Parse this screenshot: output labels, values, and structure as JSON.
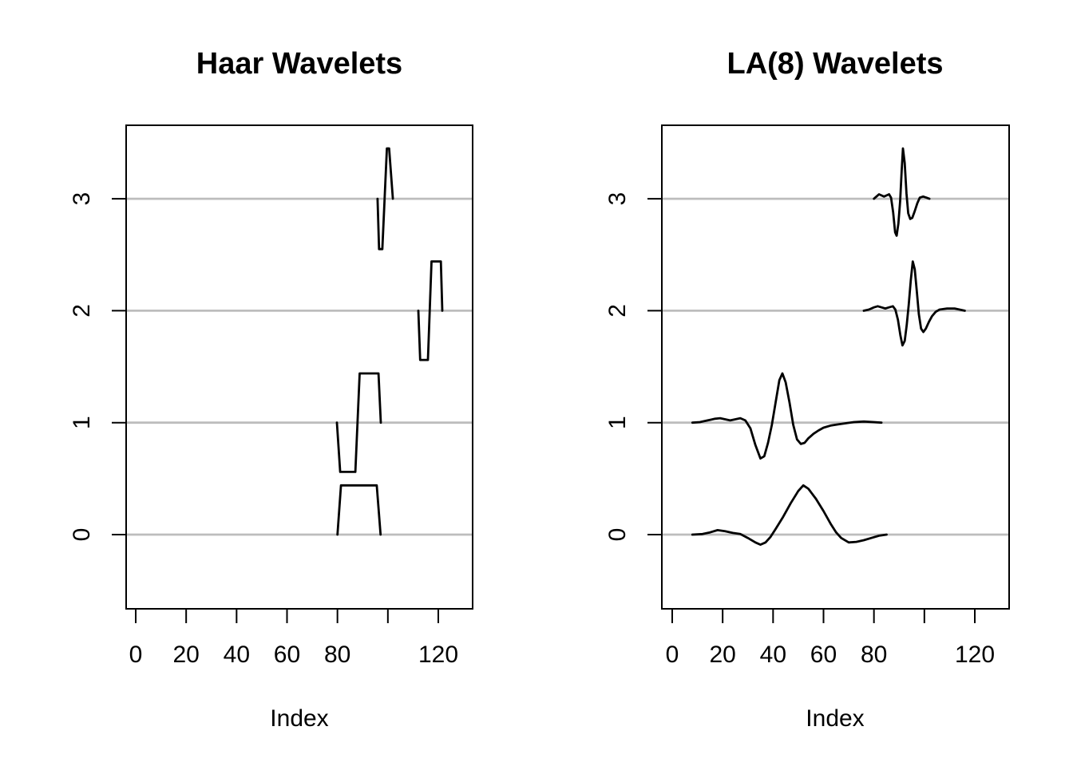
{
  "figure": {
    "background": "#ffffff",
    "text_color": "#000000",
    "baseline_color": "#bdbdbd",
    "curve_color": "#000000"
  },
  "chart_data": [
    {
      "type": "line",
      "name": "haar",
      "title": "Haar Wavelets",
      "xlabel": "Index",
      "xlim": [
        -4,
        133
      ],
      "ylim": [
        -0.66,
        3.66
      ],
      "grid": false,
      "legend": "none",
      "x_ticks": {
        "values": [
          0,
          20,
          40,
          60,
          80,
          100,
          120
        ],
        "labels": [
          "0",
          "20",
          "40",
          "60",
          "80",
          "",
          "120"
        ]
      },
      "y_ticks": {
        "values": [
          0,
          1,
          2,
          3
        ],
        "labels": [
          "0",
          "1",
          "2",
          "3"
        ]
      },
      "baselines": [
        0,
        1,
        2,
        3
      ],
      "series": [
        {
          "name": "haar-level-0-scaling",
          "level": 0,
          "points": [
            [
              80.0,
              0
            ],
            [
              81.4,
              0.44
            ],
            [
              95.6,
              0.44
            ],
            [
              97.1,
              0
            ]
          ]
        },
        {
          "name": "haar-level-1-wavelet",
          "level": 1,
          "points": [
            [
              79.8,
              0
            ],
            [
              81.1,
              -0.44
            ],
            [
              87.1,
              -0.44
            ],
            [
              88.8,
              0.44
            ],
            [
              96.3,
              0.44
            ],
            [
              97.2,
              0
            ]
          ]
        },
        {
          "name": "haar-level-2-wavelet",
          "level": 2,
          "points": [
            [
              112.1,
              0
            ],
            [
              112.8,
              -0.44
            ],
            [
              115.9,
              -0.44
            ],
            [
              117.3,
              0.44
            ],
            [
              121.0,
              0.44
            ],
            [
              121.6,
              0
            ]
          ]
        },
        {
          "name": "haar-level-3-wavelet",
          "level": 3,
          "points": [
            [
              95.9,
              0
            ],
            [
              96.5,
              -0.45
            ],
            [
              97.8,
              -0.45
            ],
            [
              99.6,
              0.45
            ],
            [
              100.5,
              0.45
            ],
            [
              102.0,
              0
            ]
          ]
        }
      ]
    },
    {
      "type": "line",
      "name": "la8",
      "title": "LA(8) Wavelets",
      "xlabel": "Index",
      "xlim": [
        -4,
        133
      ],
      "ylim": [
        -0.66,
        3.66
      ],
      "grid": false,
      "legend": "none",
      "x_ticks": {
        "values": [
          0,
          20,
          40,
          60,
          80,
          100,
          120
        ],
        "labels": [
          "0",
          "20",
          "40",
          "60",
          "80",
          "",
          "120"
        ]
      },
      "y_ticks": {
        "values": [
          0,
          1,
          2,
          3
        ],
        "labels": [
          "0",
          "1",
          "2",
          "3"
        ]
      },
      "baselines": [
        0,
        1,
        2,
        3
      ],
      "series": [
        {
          "name": "la8-level-0-scaling",
          "level": 0,
          "points": [
            [
              8,
              0
            ],
            [
              12,
              0.005
            ],
            [
              15,
              0.02
            ],
            [
              18,
              0.04
            ],
            [
              21,
              0.03
            ],
            [
              24,
              0.015
            ],
            [
              27,
              0.005
            ],
            [
              30,
              -0.03
            ],
            [
              33,
              -0.07
            ],
            [
              35,
              -0.09
            ],
            [
              37,
              -0.07
            ],
            [
              39,
              -0.02
            ],
            [
              41,
              0.05
            ],
            [
              44,
              0.16
            ],
            [
              47,
              0.28
            ],
            [
              50,
              0.39
            ],
            [
              52,
              0.44
            ],
            [
              54,
              0.41
            ],
            [
              57,
              0.32
            ],
            [
              60,
              0.21
            ],
            [
              63,
              0.09
            ],
            [
              65,
              0.02
            ],
            [
              67,
              -0.03
            ],
            [
              70,
              -0.07
            ],
            [
              73,
              -0.065
            ],
            [
              76,
              -0.05
            ],
            [
              79,
              -0.03
            ],
            [
              82,
              -0.01
            ],
            [
              85,
              0
            ]
          ]
        },
        {
          "name": "la8-level-1-wavelet",
          "level": 1,
          "points": [
            [
              8,
              0
            ],
            [
              11,
              0.005
            ],
            [
              14,
              0.02
            ],
            [
              17,
              0.035
            ],
            [
              19,
              0.04
            ],
            [
              21,
              0.03
            ],
            [
              23,
              0.02
            ],
            [
              25,
              0.03
            ],
            [
              27,
              0.04
            ],
            [
              29,
              0.02
            ],
            [
              31,
              -0.05
            ],
            [
              33,
              -0.2
            ],
            [
              35,
              -0.32
            ],
            [
              36.5,
              -0.3
            ],
            [
              38,
              -0.18
            ],
            [
              39.5,
              -0.02
            ],
            [
              41,
              0.18
            ],
            [
              42.5,
              0.38
            ],
            [
              43.7,
              0.44
            ],
            [
              45,
              0.36
            ],
            [
              46.5,
              0.18
            ],
            [
              48,
              -0.02
            ],
            [
              49.5,
              -0.15
            ],
            [
              51,
              -0.19
            ],
            [
              52.5,
              -0.18
            ],
            [
              54,
              -0.14
            ],
            [
              56,
              -0.1
            ],
            [
              58,
              -0.07
            ],
            [
              60,
              -0.045
            ],
            [
              63,
              -0.025
            ],
            [
              66,
              -0.015
            ],
            [
              69,
              -0.005
            ],
            [
              72,
              0.005
            ],
            [
              76,
              0.01
            ],
            [
              80,
              0.005
            ],
            [
              83,
              0
            ]
          ]
        },
        {
          "name": "la8-level-2-wavelet",
          "level": 2,
          "points": [
            [
              76,
              0
            ],
            [
              78,
              0.01
            ],
            [
              80,
              0.03
            ],
            [
              81.5,
              0.04
            ],
            [
              83,
              0.03
            ],
            [
              84.5,
              0.02
            ],
            [
              86,
              0.03
            ],
            [
              87.5,
              0.04
            ],
            [
              88.5,
              0.01
            ],
            [
              89.5,
              -0.08
            ],
            [
              90.5,
              -0.22
            ],
            [
              91.3,
              -0.31
            ],
            [
              92.2,
              -0.27
            ],
            [
              93,
              -0.13
            ],
            [
              93.8,
              0.05
            ],
            [
              94.6,
              0.27
            ],
            [
              95.4,
              0.44
            ],
            [
              96.2,
              0.37
            ],
            [
              97,
              0.17
            ],
            [
              97.8,
              -0.03
            ],
            [
              98.7,
              -0.16
            ],
            [
              99.6,
              -0.19
            ],
            [
              100.6,
              -0.16
            ],
            [
              101.8,
              -0.1
            ],
            [
              103,
              -0.05
            ],
            [
              104.5,
              -0.01
            ],
            [
              106,
              0.01
            ],
            [
              109,
              0.02
            ],
            [
              112,
              0.02
            ],
            [
              114,
              0.01
            ],
            [
              116,
              0
            ]
          ]
        },
        {
          "name": "la8-level-3-wavelet",
          "level": 3,
          "points": [
            [
              80,
              0
            ],
            [
              81,
              0.02
            ],
            [
              82,
              0.04
            ],
            [
              83,
              0.03
            ],
            [
              84,
              0.02
            ],
            [
              85,
              0.03
            ],
            [
              86,
              0.04
            ],
            [
              86.8,
              0.01
            ],
            [
              87.6,
              -0.12
            ],
            [
              88.4,
              -0.3
            ],
            [
              89,
              -0.33
            ],
            [
              89.7,
              -0.22
            ],
            [
              90.4,
              -0.02
            ],
            [
              91,
              0.25
            ],
            [
              91.5,
              0.45
            ],
            [
              92.2,
              0.32
            ],
            [
              92.9,
              0.05
            ],
            [
              93.6,
              -0.13
            ],
            [
              94.4,
              -0.18
            ],
            [
              95.2,
              -0.17
            ],
            [
              96.2,
              -0.11
            ],
            [
              97.2,
              -0.04
            ],
            [
              98.2,
              0.01
            ],
            [
              99.5,
              0.02
            ],
            [
              100.8,
              0.01
            ],
            [
              102,
              0
            ]
          ]
        }
      ]
    }
  ]
}
